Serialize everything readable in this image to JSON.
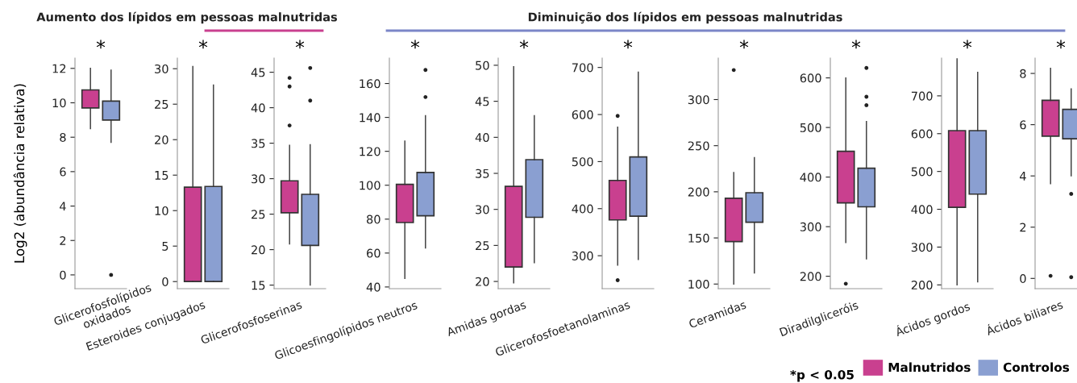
{
  "chart_data": [
    {
      "type": "box",
      "title": "*",
      "ylabel": "Log2 (abundância relativa)",
      "categories": [
        "Glicerofosfolípidos\noxidados"
      ],
      "ylim": [
        -0.8,
        12.6
      ],
      "yticks": [
        0,
        2,
        4,
        6,
        8,
        10,
        12
      ],
      "grid": false,
      "legend": "bottom right",
      "annotations": [
        "Aumento dos lípidos em pessoas malnutridas"
      ],
      "series": [
        {
          "name": "Malnutridos",
          "color": "#c9408f",
          "boxes": [
            {
              "low": 8.5,
              "q1": 9.7,
              "q3": 10.75,
              "high": 12.0
            }
          ]
        },
        {
          "name": "Controlos",
          "color": "#8a9fd1",
          "boxes": [
            {
              "low": 7.7,
              "q1": 9.0,
              "q3": 10.1,
              "high": 11.9,
              "outliers": [
                0
              ]
            }
          ]
        }
      ]
    },
    {
      "type": "box",
      "title": "*",
      "categories": [
        "Esteroides conjugados"
      ],
      "ylim": [
        -1,
        31.5
      ],
      "yticks": [
        0,
        5,
        10,
        15,
        20,
        25,
        30
      ],
      "grid": false,
      "series": [
        {
          "color": "#c9408f",
          "boxes": [
            {
              "low": 0,
              "q1": 0,
              "q3": 13.3,
              "high": 30.3
            }
          ]
        },
        {
          "color": "#8a9fd1",
          "boxes": [
            {
              "low": 0,
              "q1": 0,
              "q3": 13.4,
              "high": 27.7
            }
          ]
        }
      ]
    },
    {
      "type": "box",
      "title": "*",
      "categories": [
        "Glicerofosfoserinas"
      ],
      "ylim": [
        14.5,
        47
      ],
      "yticks": [
        15,
        20,
        25,
        30,
        35,
        40,
        45
      ],
      "grid": false,
      "series": [
        {
          "color": "#c9408f",
          "boxes": [
            {
              "low": 20.8,
              "q1": 25.2,
              "q3": 29.7,
              "high": 34.7,
              "outliers": [
                37.5,
                43,
                44.2
              ]
            }
          ]
        },
        {
          "color": "#8a9fd1",
          "boxes": [
            {
              "low": 15,
              "q1": 20.6,
              "q3": 27.8,
              "high": 34.8,
              "outliers": [
                41,
                45.6
              ]
            }
          ]
        }
      ]
    },
    {
      "type": "box",
      "title": "*",
      "categories": [
        "Glicoesfingolípidos neutros"
      ],
      "ylim": [
        39,
        175
      ],
      "yticks": [
        40,
        60,
        80,
        100,
        120,
        140,
        160
      ],
      "grid": false,
      "annotations": [
        "Diminuição dos lípidos em pessoas malnutridas"
      ],
      "series": [
        {
          "color": "#c9408f",
          "boxes": [
            {
              "low": 45,
              "q1": 78,
              "q3": 100.5,
              "high": 126
            }
          ]
        },
        {
          "color": "#8a9fd1",
          "boxes": [
            {
              "low": 63,
              "q1": 82,
              "q3": 107.5,
              "high": 141,
              "outliers": [
                152,
                168
              ]
            }
          ]
        }
      ]
    },
    {
      "type": "box",
      "title": "*",
      "categories": [
        "Amidas gordas"
      ],
      "ylim": [
        19,
        51
      ],
      "yticks": [
        20,
        25,
        30,
        35,
        40,
        45,
        50
      ],
      "grid": false,
      "series": [
        {
          "color": "#c9408f",
          "boxes": [
            {
              "low": 19.8,
              "q1": 22,
              "q3": 33.2,
              "high": 49.8
            }
          ]
        },
        {
          "color": "#8a9fd1",
          "boxes": [
            {
              "low": 22.6,
              "q1": 28.9,
              "q3": 36.9,
              "high": 43
            }
          ]
        }
      ]
    },
    {
      "type": "box",
      "title": "*",
      "categories": [
        "Glicerofosfoetanolaminas"
      ],
      "ylim": [
        230,
        720
      ],
      "yticks": [
        300,
        400,
        500,
        600,
        700
      ],
      "grid": false,
      "series": [
        {
          "color": "#c9408f",
          "boxes": [
            {
              "low": 280,
              "q1": 376,
              "q3": 460,
              "high": 573,
              "outliers": [
                248,
                597
              ]
            }
          ]
        },
        {
          "color": "#8a9fd1",
          "boxes": [
            {
              "low": 292,
              "q1": 384,
              "q3": 510,
              "high": 690
            }
          ]
        }
      ]
    },
    {
      "type": "box",
      "title": "*",
      "categories": [
        "Ceramidas"
      ],
      "ylim": [
        95,
        345
      ],
      "yticks": [
        100,
        150,
        200,
        250,
        300
      ],
      "grid": false,
      "series": [
        {
          "color": "#c9408f",
          "boxes": [
            {
              "low": 100,
              "q1": 146,
              "q3": 193,
              "high": 221,
              "outliers": [
                332
              ]
            }
          ]
        },
        {
          "color": "#8a9fd1",
          "boxes": [
            {
              "low": 112,
              "q1": 167,
              "q3": 199,
              "high": 237
            }
          ]
        }
      ]
    },
    {
      "type": "box",
      "title": "*",
      "categories": [
        "Diradilgliceróis"
      ],
      "ylim": [
        175,
        640
      ],
      "yticks": [
        200,
        300,
        400,
        500,
        600
      ],
      "grid": false,
      "series": [
        {
          "color": "#c9408f",
          "boxes": [
            {
              "low": 268,
              "q1": 348,
              "q3": 452,
              "high": 600,
              "outliers": [
                185
              ]
            }
          ]
        },
        {
          "color": "#8a9fd1",
          "boxes": [
            {
              "low": 235,
              "q1": 340,
              "q3": 418,
              "high": 512,
              "outliers": [
                545,
                562,
                620
              ]
            }
          ]
        }
      ]
    },
    {
      "type": "box",
      "title": "*",
      "categories": [
        "Ácidos gordos"
      ],
      "ylim": [
        190,
        800
      ],
      "yticks": [
        200,
        300,
        400,
        500,
        600,
        700
      ],
      "grid": false,
      "series": [
        {
          "color": "#c9408f",
          "boxes": [
            {
              "low": 200,
              "q1": 405,
              "q3": 608,
              "high": 798
            }
          ]
        },
        {
          "color": "#8a9fd1",
          "boxes": [
            {
              "low": 208,
              "q1": 440,
              "q3": 608,
              "high": 762
            }
          ]
        }
      ]
    },
    {
      "type": "box",
      "title": "*",
      "categories": [
        "Ácidos biliares"
      ],
      "ylim": [
        -0.4,
        8.6
      ],
      "yticks": [
        0,
        2,
        4,
        6,
        8
      ],
      "grid": false,
      "annotations": [
        "*p < 0.05"
      ],
      "series": [
        {
          "color": "#c9408f",
          "boxes": [
            {
              "low": 3.7,
              "q1": 5.55,
              "q3": 6.95,
              "high": 8.2,
              "outliers": [
                0.1
              ]
            }
          ]
        },
        {
          "color": "#8a9fd1",
          "boxes": [
            {
              "low": 4.0,
              "q1": 5.45,
              "q3": 6.6,
              "high": 7.4,
              "outliers": [
                0.05,
                3.3
              ]
            }
          ]
        }
      ]
    }
  ]
}
